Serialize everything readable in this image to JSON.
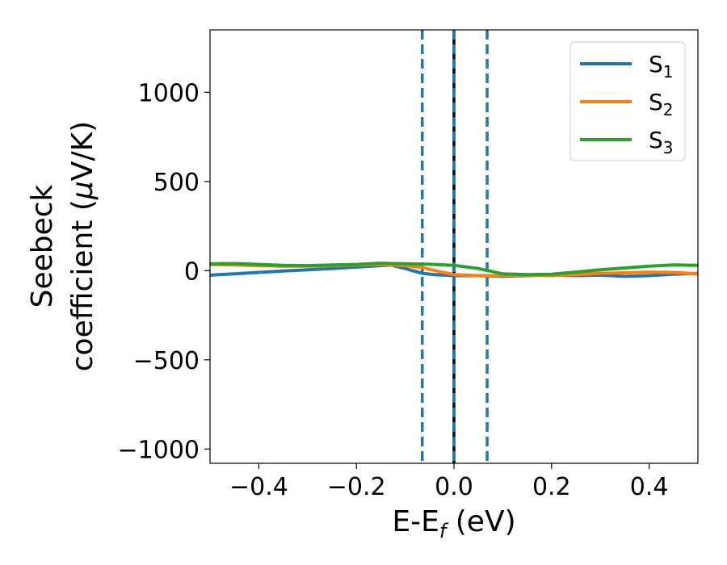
{
  "chart_data": {
    "type": "line",
    "xlabel": {
      "main": "E-E",
      "sub": "f",
      "rest": " (eV)"
    },
    "ylabel": {
      "line1": "Seebeck",
      "line2": "coefficient  (",
      "mu": "μ",
      "line2_rest": "V/K)"
    },
    "xlim": [
      -0.5,
      0.5
    ],
    "ylim": [
      -1080,
      1350
    ],
    "xticks": [
      {
        "value": -0.4,
        "label": "−0.4"
      },
      {
        "value": -0.2,
        "label": "−0.2"
      },
      {
        "value": 0.0,
        "label": "0.0"
      },
      {
        "value": 0.2,
        "label": "0.2"
      },
      {
        "value": 0.4,
        "label": "0.4"
      }
    ],
    "yticks": [
      {
        "value": -1000,
        "label": "−1000"
      },
      {
        "value": -500,
        "label": "−500"
      },
      {
        "value": 0,
        "label": "0"
      },
      {
        "value": 500,
        "label": "500"
      },
      {
        "value": 1000,
        "label": "1000"
      }
    ],
    "legend_position": "top-right",
    "series": [
      {
        "name": "S",
        "sub": "1",
        "color": "#1f77b4",
        "x": [
          -0.5,
          -0.45,
          -0.4,
          -0.35,
          -0.3,
          -0.25,
          -0.2,
          -0.15,
          -0.13,
          -0.1,
          -0.065,
          -0.04,
          -0.02,
          0.0,
          0.05,
          0.1,
          0.15,
          0.2,
          0.25,
          0.3,
          0.35,
          0.4,
          0.45,
          0.5
        ],
        "y": [
          -25,
          -18,
          -10,
          -2,
          5,
          12,
          20,
          28,
          32,
          12,
          -15,
          -22,
          -25,
          -28,
          -28,
          -32,
          -28,
          -25,
          -28,
          -25,
          -32,
          -28,
          -20,
          -15
        ]
      },
      {
        "name": "S",
        "sub": "2",
        "color": "#ff7f0e",
        "x": [
          -0.5,
          -0.45,
          -0.4,
          -0.35,
          -0.3,
          -0.25,
          -0.2,
          -0.15,
          -0.1,
          -0.065,
          -0.03,
          0.0,
          0.05,
          0.1,
          0.15,
          0.2,
          0.25,
          0.3,
          0.35,
          0.4,
          0.45,
          0.5
        ],
        "y": [
          35,
          32,
          28,
          25,
          25,
          28,
          32,
          35,
          28,
          18,
          -5,
          -22,
          -28,
          -28,
          -25,
          -28,
          -22,
          -15,
          -12,
          -8,
          -10,
          -18
        ]
      },
      {
        "name": "S",
        "sub": "3",
        "color": "#2ca02c",
        "x": [
          -0.5,
          -0.45,
          -0.4,
          -0.35,
          -0.3,
          -0.25,
          -0.2,
          -0.15,
          -0.1,
          -0.05,
          0.0,
          0.05,
          0.1,
          0.15,
          0.2,
          0.25,
          0.3,
          0.35,
          0.4,
          0.45,
          0.5
        ],
        "y": [
          38,
          40,
          35,
          30,
          28,
          32,
          35,
          42,
          38,
          36,
          30,
          12,
          -18,
          -22,
          -20,
          -8,
          5,
          15,
          25,
          32,
          30
        ]
      }
    ],
    "vlines": [
      {
        "x": 0.0,
        "color": "#000000",
        "style": "solid"
      },
      {
        "x": 0.0,
        "color": "#1f77b4",
        "style": "dashed"
      },
      {
        "x": -0.065,
        "color": "#1f77b4",
        "style": "dashed"
      },
      {
        "x": 0.068,
        "color": "#1f77b4",
        "style": "dashed"
      }
    ]
  }
}
